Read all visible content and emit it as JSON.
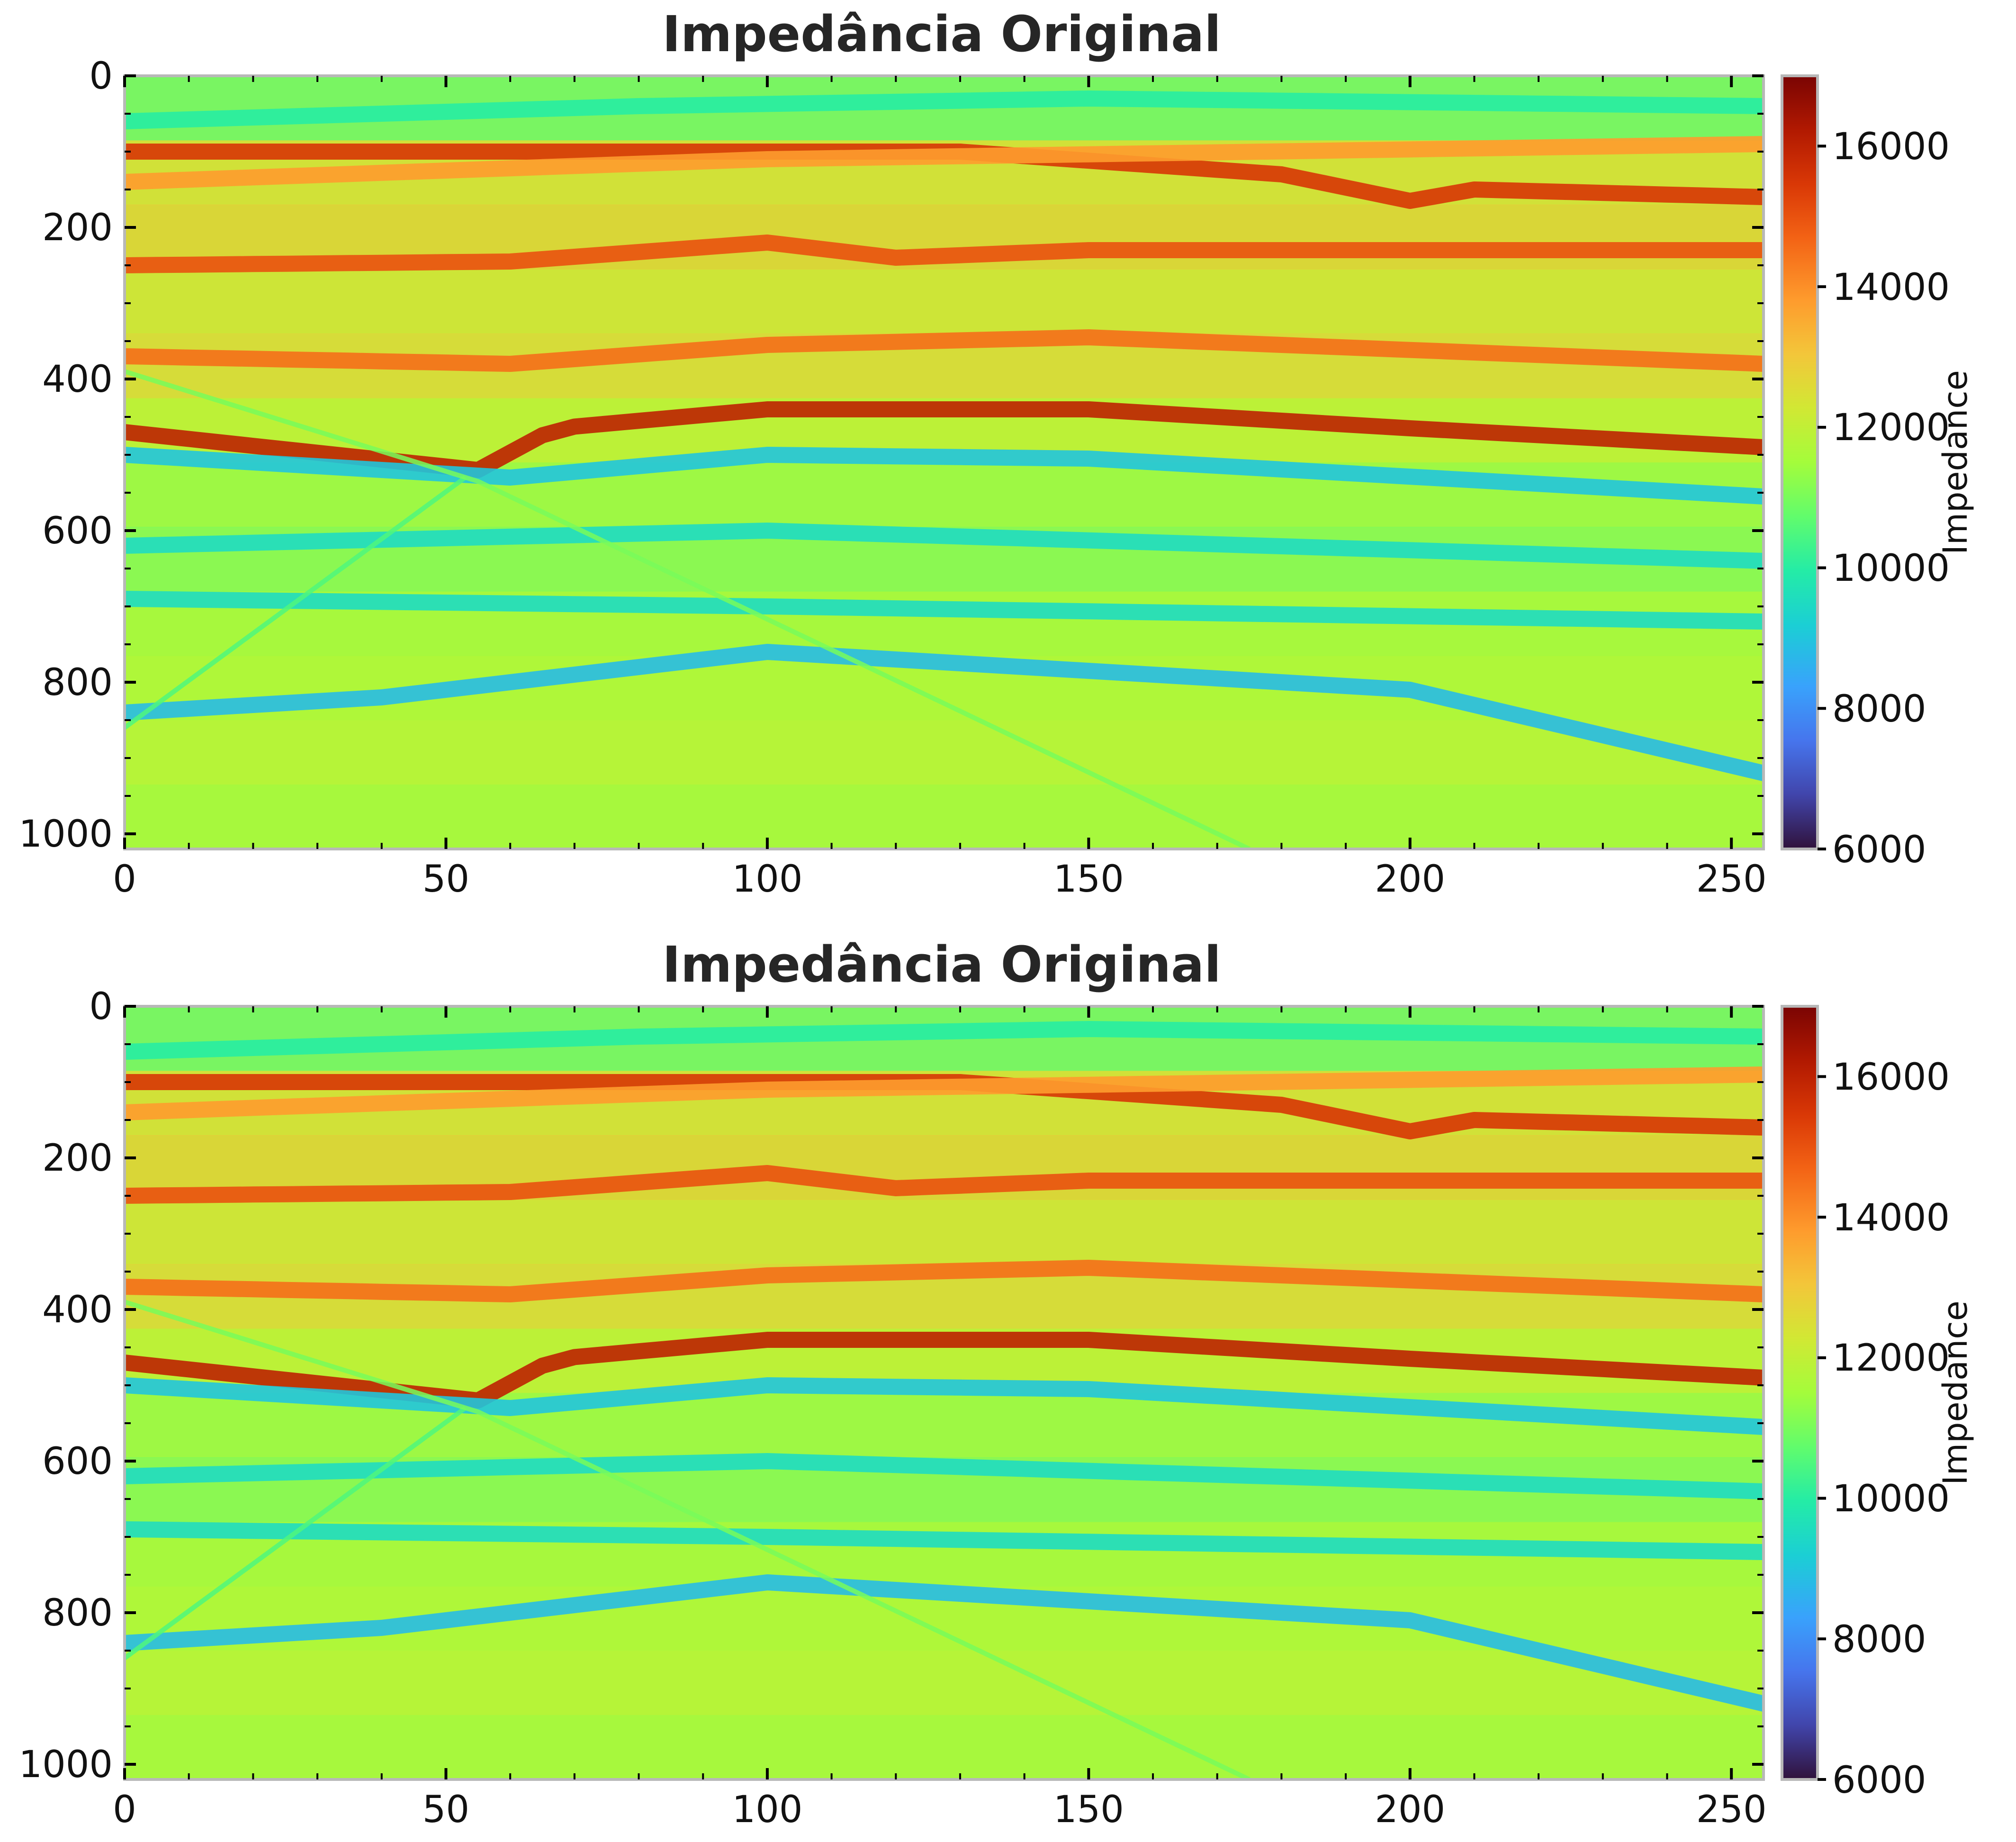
{
  "chart_data": [
    {
      "type": "heatmap",
      "title": "Impedância Original",
      "xlim": [
        0,
        255
      ],
      "ylim": [
        1020,
        0
      ],
      "y_inverted": true,
      "xticks": [
        0,
        50,
        100,
        150,
        200,
        250
      ],
      "xtick_labels": [
        "0",
        "50",
        "100",
        "150",
        "200",
        "250"
      ],
      "yticks": [
        0,
        200,
        400,
        600,
        800,
        1000
      ],
      "ytick_labels": [
        "0",
        "200",
        "400",
        "600",
        "800",
        "1000"
      ],
      "colormap": "turbo",
      "colorbar": {
        "label": "Impedance",
        "range": [
          6000,
          17000
        ],
        "ticks": [
          6000,
          8000,
          10000,
          12000,
          14000,
          16000
        ],
        "tick_labels": [
          "6000",
          "8000",
          "10000",
          "12000",
          "14000",
          "16000"
        ]
      },
      "features": {
        "horizons": [
          {
            "x": [
              0,
              55,
              67,
              100,
              150,
              200,
              255
            ],
            "depth": [
              470,
              520,
              465,
              440,
              440,
              465,
              490
            ],
            "value": 16000
          },
          {
            "x": [
              0,
              60,
              100,
              120,
              150,
              255
            ],
            "depth": [
              250,
              245,
              220,
              240,
              230,
              230
            ],
            "value": 15000
          },
          {
            "x": [
              130,
              180,
              200,
              210,
              255
            ],
            "depth": [
              100,
              130,
              165,
              150,
              160
            ],
            "value": 15500
          },
          {
            "x": [
              0,
              60,
              100,
              150,
              255
            ],
            "depth": [
              370,
              380,
              355,
              345,
              380
            ],
            "value": 14500
          },
          {
            "x": [
              0,
              100,
              255
            ],
            "depth": [
              140,
              110,
              90
            ],
            "value": 13800
          },
          {
            "x": [
              0,
              60,
              100,
              150,
              255
            ],
            "depth": [
              500,
              530,
              500,
              505,
              555
            ],
            "value": 9000
          },
          {
            "x": [
              0,
              100,
              255
            ],
            "depth": [
              620,
              600,
              640
            ],
            "value": 9500
          },
          {
            "x": [
              0,
              40,
              100,
              200,
              255
            ],
            "depth": [
              840,
              820,
              760,
              810,
              920
            ],
            "value": 8800
          },
          {
            "x": [
              0,
              100,
              255
            ],
            "depth": [
              690,
              700,
              720
            ],
            "value": 9500
          },
          {
            "x": [
              0,
              80,
              150,
              255
            ],
            "depth": [
              60,
              40,
              30,
              40
            ],
            "value": 10000
          }
        ],
        "faults": [
          {
            "x": [
              0,
              53
            ],
            "depth": [
              860,
              530
            ],
            "value": 10500
          },
          {
            "x": [
              0,
              55,
              175
            ],
            "depth": [
              390,
              535,
              1020
            ],
            "value": 11000
          }
        ]
      }
    },
    {
      "type": "heatmap",
      "title": "Impedância Original",
      "xlim": [
        0,
        255
      ],
      "ylim": [
        1020,
        0
      ],
      "y_inverted": true,
      "xticks": [
        0,
        50,
        100,
        150,
        200,
        250
      ],
      "xtick_labels": [
        "0",
        "50",
        "100",
        "150",
        "200",
        "250"
      ],
      "yticks": [
        0,
        200,
        400,
        600,
        800,
        1000
      ],
      "ytick_labels": [
        "0",
        "200",
        "400",
        "600",
        "800",
        "1000"
      ],
      "colormap": "turbo",
      "colorbar": {
        "label": "Impedance",
        "range": [
          6000,
          17000
        ],
        "ticks": [
          6000,
          8000,
          10000,
          12000,
          14000,
          16000
        ],
        "tick_labels": [
          "6000",
          "8000",
          "10000",
          "12000",
          "14000",
          "16000"
        ]
      },
      "features": {
        "horizons": [
          {
            "x": [
              0,
              55,
              67,
              100,
              150,
              200,
              255
            ],
            "depth": [
              470,
              520,
              465,
              440,
              440,
              465,
              490
            ],
            "value": 16000
          },
          {
            "x": [
              0,
              60,
              100,
              120,
              150,
              255
            ],
            "depth": [
              250,
              245,
              220,
              240,
              230,
              230
            ],
            "value": 15000
          },
          {
            "x": [
              130,
              180,
              200,
              210,
              255
            ],
            "depth": [
              100,
              130,
              165,
              150,
              160
            ],
            "value": 15500
          },
          {
            "x": [
              0,
              60,
              100,
              150,
              255
            ],
            "depth": [
              370,
              380,
              355,
              345,
              380
            ],
            "value": 14500
          },
          {
            "x": [
              0,
              100,
              255
            ],
            "depth": [
              140,
              110,
              90
            ],
            "value": 13800
          },
          {
            "x": [
              0,
              60,
              100,
              150,
              255
            ],
            "depth": [
              500,
              530,
              500,
              505,
              555
            ],
            "value": 9000
          },
          {
            "x": [
              0,
              100,
              255
            ],
            "depth": [
              620,
              600,
              640
            ],
            "value": 9500
          },
          {
            "x": [
              0,
              40,
              100,
              200,
              255
            ],
            "depth": [
              840,
              820,
              760,
              810,
              920
            ],
            "value": 8800
          },
          {
            "x": [
              0,
              100,
              255
            ],
            "depth": [
              690,
              700,
              720
            ],
            "value": 9500
          },
          {
            "x": [
              0,
              80,
              150,
              255
            ],
            "depth": [
              60,
              40,
              30,
              40
            ],
            "value": 10000
          }
        ],
        "faults": [
          {
            "x": [
              0,
              53
            ],
            "depth": [
              860,
              530
            ],
            "value": 10500
          },
          {
            "x": [
              0,
              55,
              175
            ],
            "depth": [
              390,
              535,
              1020
            ],
            "value": 11000
          }
        ]
      }
    }
  ]
}
